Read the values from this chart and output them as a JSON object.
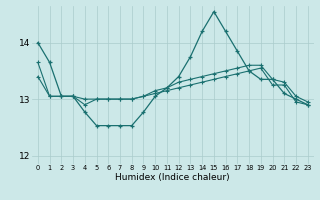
{
  "xlabel": "Humidex (Indice chaleur)",
  "bg_color": "#cce8e8",
  "grid_color": "#aacccc",
  "line_color": "#1a7070",
  "xlim": [
    -0.5,
    23.5
  ],
  "ylim": [
    11.85,
    14.65
  ],
  "yticks": [
    12,
    13,
    14
  ],
  "xticks": [
    0,
    1,
    2,
    3,
    4,
    5,
    6,
    7,
    8,
    9,
    10,
    11,
    12,
    13,
    14,
    15,
    16,
    17,
    18,
    19,
    20,
    21,
    22,
    23
  ],
  "line1_y": [
    14.0,
    13.65,
    13.05,
    13.05,
    12.77,
    12.53,
    12.53,
    12.53,
    12.53,
    12.77,
    13.05,
    13.2,
    13.4,
    13.75,
    14.2,
    14.55,
    14.2,
    13.85,
    13.5,
    13.35,
    13.35,
    13.1,
    13.0,
    12.9
  ],
  "line2_y": [
    13.65,
    13.05,
    13.05,
    13.05,
    13.0,
    13.0,
    13.0,
    13.0,
    13.0,
    13.05,
    13.15,
    13.2,
    13.3,
    13.35,
    13.4,
    13.45,
    13.5,
    13.55,
    13.6,
    13.6,
    13.35,
    13.3,
    13.05,
    12.95
  ],
  "line3_y": [
    13.4,
    13.05,
    13.05,
    13.05,
    12.9,
    13.0,
    13.0,
    13.0,
    13.0,
    13.05,
    13.1,
    13.15,
    13.2,
    13.25,
    13.3,
    13.35,
    13.4,
    13.45,
    13.5,
    13.55,
    13.25,
    13.25,
    12.95,
    12.9
  ]
}
